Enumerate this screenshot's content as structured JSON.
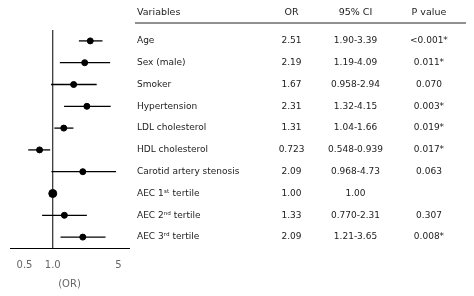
{
  "chart_data": {
    "type": "forest",
    "xlabel": "(OR)",
    "column_headers": [
      "Variables",
      "OR",
      "95% CI",
      "P value"
    ],
    "categories": [
      "Age",
      "Sex (male)",
      "Smoker",
      "Hypertension",
      "LDL cholesterol",
      "HDL cholesterol",
      "Carotid artery stenosis",
      "AEC 1ˢᵗ tertile",
      "AEC 2ⁿᵈ tertile",
      "AEC 3ʳᵈ tertile"
    ],
    "values": [
      2.51,
      2.19,
      1.67,
      2.31,
      1.31,
      0.723,
      2.09,
      1.0,
      1.33,
      2.09
    ],
    "value_labels": [
      "2.51",
      "2.19",
      "1.67",
      "2.31",
      "1.31",
      "0.723",
      "2.09",
      "1.00",
      "1.33",
      "2.09"
    ],
    "ci_lo": [
      1.9,
      1.19,
      0.958,
      1.32,
      1.04,
      0.548,
      0.968,
      null,
      0.77,
      1.21
    ],
    "ci_hi": [
      3.39,
      4.09,
      2.94,
      4.15,
      1.66,
      0.939,
      4.73,
      null,
      2.31,
      3.65
    ],
    "ci_labels": [
      "1.90-3.39",
      "1.19-4.09",
      "0.958-2.94",
      "1.32-4.15",
      "1.04-1.66",
      "0.548-0.939",
      "0.968-4.73",
      "1.00",
      "0.770-2.31",
      "1.21-3.65"
    ],
    "p_labels": [
      "<0.001*",
      "0.011*",
      "0.070",
      "0.003*",
      "0.019*",
      "0.017*",
      "0.063",
      null,
      "0.307",
      "0.008*"
    ],
    "reference": 1.0,
    "xlim": [
      0.35,
      6.5
    ],
    "xticks": [
      0.5,
      {
        "value": 1.0,
        "label": "1.0"
      },
      5
    ],
    "log": "x",
    "grid": false,
    "color": "#000000"
  }
}
